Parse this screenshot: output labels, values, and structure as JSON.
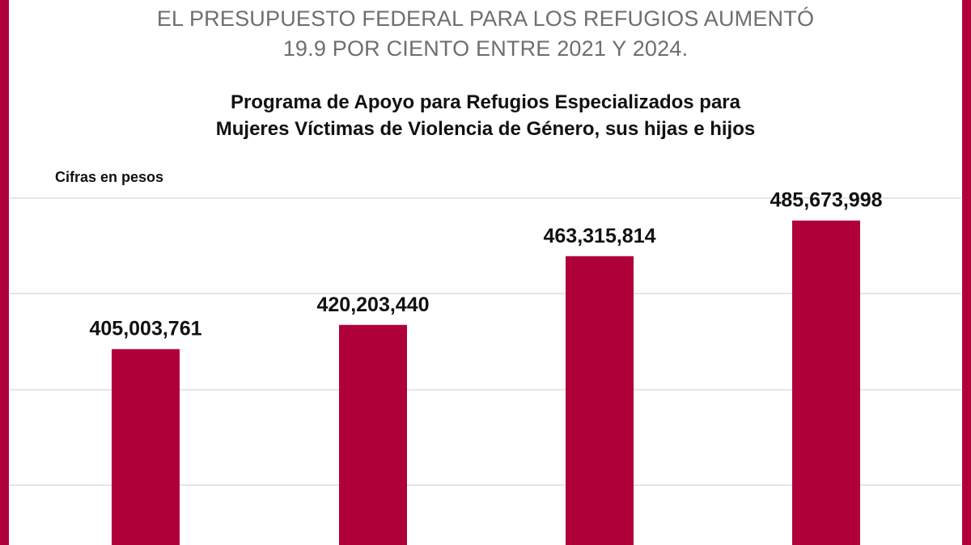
{
  "headline": {
    "line1": "EL PRESUPUESTO FEDERAL PARA LOS REFUGIOS AUMENTÓ",
    "line2": "19.9 POR CIENTO ENTRE 2021 Y 2024."
  },
  "colors": {
    "bar": "#b0003a",
    "border": "#b0003a",
    "grid": "#cccccc"
  },
  "chart_data": {
    "type": "bar",
    "title": "Programa de Apoyo para Refugios Especializados para Mujeres Víctimas de Violencia de Género, sus hijas e hijos",
    "title_lines": [
      "Programa de Apoyo para Refugios Especializados para",
      "Mujeres Víctimas de Violencia de Género, sus hijas e hijos"
    ],
    "ylabel": "Cifras en pesos",
    "values": [
      405003761,
      420203440,
      463315814,
      485673998
    ],
    "data_labels": [
      "405,003,761",
      "420,203,440",
      "463,315,814",
      "485,673,998"
    ],
    "grid": true
  }
}
